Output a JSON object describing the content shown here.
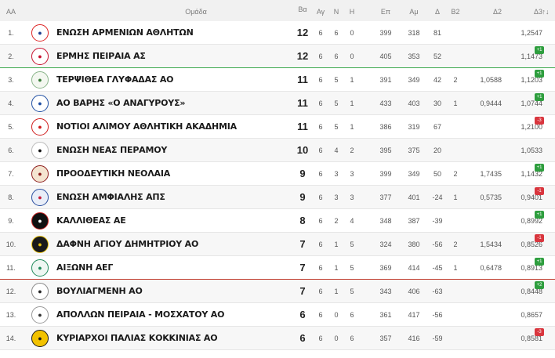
{
  "header": {
    "pos": "AA",
    "team": "Ομάδα",
    "pts": "Βα",
    "ag": "Αγ",
    "n": "Ν",
    "h": "Η",
    "ep": "Επ",
    "am": "Αμ",
    "d": "Δ",
    "b2": "Β2",
    "d2": "Δ2",
    "d3": "Δ3",
    "move": "↑↓"
  },
  "rows": [
    {
      "pos": "1.",
      "team": "ΕΝΩΣΗ ΑΡΜΕΝΙΩΝ ΑΘΛΗΤΩΝ",
      "pts": "12",
      "ag": "6",
      "n": "6",
      "h": "0",
      "ep": "399",
      "am": "318",
      "d": "81",
      "b2": "",
      "d2": "",
      "d3": "1,2547",
      "move": ""
    },
    {
      "pos": "2.",
      "team": "ΕΡΜΗΣ ΠΕΙΡΑΙΑ ΑΣ",
      "pts": "12",
      "ag": "6",
      "n": "6",
      "h": "0",
      "ep": "405",
      "am": "353",
      "d": "52",
      "b2": "",
      "d2": "",
      "d3": "1,1473",
      "move": "+1"
    },
    {
      "pos": "3.",
      "team": "ΤΕΡΨΙΘΕΑ ΓΛΥΦΑΔΑΣ ΑΟ",
      "pts": "11",
      "ag": "6",
      "n": "5",
      "h": "1",
      "ep": "391",
      "am": "349",
      "d": "42",
      "b2": "2",
      "d2": "1,0588",
      "d3": "1,1203",
      "move": "+1"
    },
    {
      "pos": "4.",
      "team": "ΑΟ ΒΑΡΗΣ «Ο ΑΝΑΓΥΡΟΥΣ»",
      "pts": "11",
      "ag": "6",
      "n": "5",
      "h": "1",
      "ep": "433",
      "am": "403",
      "d": "30",
      "b2": "1",
      "d2": "0,9444",
      "d3": "1,0744",
      "move": "+1"
    },
    {
      "pos": "5.",
      "team": "ΝΟΤΙΟΙ ΑΛΙΜΟΥ ΑΘΛΗΤΙΚΗ ΑΚΑΔΗΜΙΑ",
      "pts": "11",
      "ag": "6",
      "n": "5",
      "h": "1",
      "ep": "386",
      "am": "319",
      "d": "67",
      "b2": "",
      "d2": "",
      "d3": "1,2100",
      "move": "-3"
    },
    {
      "pos": "6.",
      "team": "ΕΝΩΣΗ ΝΕΑΣ ΠΕΡΑΜΟΥ",
      "pts": "10",
      "ag": "6",
      "n": "4",
      "h": "2",
      "ep": "395",
      "am": "375",
      "d": "20",
      "b2": "",
      "d2": "",
      "d3": "1,0533",
      "move": ""
    },
    {
      "pos": "7.",
      "team": "ΠΡΟΟΔΕΥΤΙΚΗ ΝΕΟΛΑΙΑ",
      "pts": "9",
      "ag": "6",
      "n": "3",
      "h": "3",
      "ep": "399",
      "am": "349",
      "d": "50",
      "b2": "2",
      "d2": "1,7435",
      "d3": "1,1432",
      "move": "+1"
    },
    {
      "pos": "8.",
      "team": "ΕΝΩΣΗ ΑΜΦΙΑΛΗΣ ΑΠΣ",
      "pts": "9",
      "ag": "6",
      "n": "3",
      "h": "3",
      "ep": "377",
      "am": "401",
      "d": "-24",
      "b2": "1",
      "d2": "0,5735",
      "d3": "0,9401",
      "move": "-1"
    },
    {
      "pos": "9.",
      "team": "ΚΑΛΛΙΘΕΑΣ ΑΕ",
      "pts": "8",
      "ag": "6",
      "n": "2",
      "h": "4",
      "ep": "348",
      "am": "387",
      "d": "-39",
      "b2": "",
      "d2": "",
      "d3": "0,8992",
      "move": "+1"
    },
    {
      "pos": "10.",
      "team": "ΔΑΦΝΗ ΑΓΙΟΥ ΔΗΜΗΤΡΙΟΥ ΑΟ",
      "pts": "7",
      "ag": "6",
      "n": "1",
      "h": "5",
      "ep": "324",
      "am": "380",
      "d": "-56",
      "b2": "2",
      "d2": "1,5434",
      "d3": "0,8526",
      "move": "-1"
    },
    {
      "pos": "11.",
      "team": "ΑΙΞΩΝΗ ΑΕΓ",
      "pts": "7",
      "ag": "6",
      "n": "1",
      "h": "5",
      "ep": "369",
      "am": "414",
      "d": "-45",
      "b2": "1",
      "d2": "0,6478",
      "d3": "0,8913",
      "move": "+1"
    },
    {
      "pos": "12.",
      "team": "ΒΟΥΛΙΑΓΜΕΝΗ ΑΟ",
      "pts": "7",
      "ag": "6",
      "n": "1",
      "h": "5",
      "ep": "343",
      "am": "406",
      "d": "-63",
      "b2": "",
      "d2": "",
      "d3": "0,8448",
      "move": "+2"
    },
    {
      "pos": "13.",
      "team": "ΑΠΟΛΛΩΝ ΠΕΙΡΑΙΑ - ΜΟΣΧΑΤΟΥ ΑΟ",
      "pts": "6",
      "ag": "6",
      "n": "0",
      "h": "6",
      "ep": "361",
      "am": "417",
      "d": "-56",
      "b2": "",
      "d2": "",
      "d3": "0,8657",
      "move": ""
    },
    {
      "pos": "14.",
      "team": "ΚΥΡΙΑΡΧΟΙ ΠΑΛΙΑΣ ΚΟΚΚΙΝΙΑΣ ΑΟ",
      "pts": "6",
      "ag": "6",
      "n": "0",
      "h": "6",
      "ep": "357",
      "am": "416",
      "d": "-59",
      "b2": "",
      "d2": "",
      "d3": "0,8581",
      "move": "-3"
    }
  ],
  "logos": [
    {
      "icon": "club-crest-icon",
      "fg": "#1d3f8f",
      "bg": "#ffffff",
      "ring": "#d22"
    },
    {
      "icon": "club-crest-icon",
      "fg": "#c8102e",
      "bg": "#ffffff",
      "ring": "#c8102e"
    },
    {
      "icon": "club-crest-icon",
      "fg": "#3a7d3a",
      "bg": "#f3f7f0",
      "ring": "#8ab58a"
    },
    {
      "icon": "club-crest-icon",
      "fg": "#1f4fa3",
      "bg": "#ffffff",
      "ring": "#1f4fa3"
    },
    {
      "icon": "club-crest-icon",
      "fg": "#d01c1c",
      "bg": "#ffffff",
      "ring": "#d01c1c"
    },
    {
      "icon": "club-crest-icon",
      "fg": "#111111",
      "bg": "#ffffff",
      "ring": "#bbbbbb"
    },
    {
      "icon": "club-crest-icon",
      "fg": "#8b1a1a",
      "bg": "#f4e4d0",
      "ring": "#8b1a1a"
    },
    {
      "icon": "club-crest-icon",
      "fg": "#c81e3a",
      "bg": "#e9eef8",
      "ring": "#2a4fa0"
    },
    {
      "icon": "club-crest-icon",
      "fg": "#ffffff",
      "bg": "#111111",
      "ring": "#c41e1e"
    },
    {
      "icon": "club-crest-icon",
      "fg": "#e8c20f",
      "bg": "#1a1a1a",
      "ring": "#e8c20f"
    },
    {
      "icon": "club-crest-icon",
      "fg": "#1f8a5a",
      "bg": "#eef7f2",
      "ring": "#1f8a5a"
    },
    {
      "icon": "club-crest-icon",
      "fg": "#222222",
      "bg": "#ffffff",
      "ring": "#888888"
    },
    {
      "icon": "club-crest-icon",
      "fg": "#333333",
      "bg": "#ffffff",
      "ring": "#999999"
    },
    {
      "icon": "club-crest-icon",
      "fg": "#1a1a1a",
      "bg": "#f2c200",
      "ring": "#1a1a1a"
    }
  ],
  "colors": {
    "up": "#2e9e3e",
    "down": "#d9363e",
    "promotion_line": "#3aa84b",
    "relegation_line": "#c0392b"
  }
}
